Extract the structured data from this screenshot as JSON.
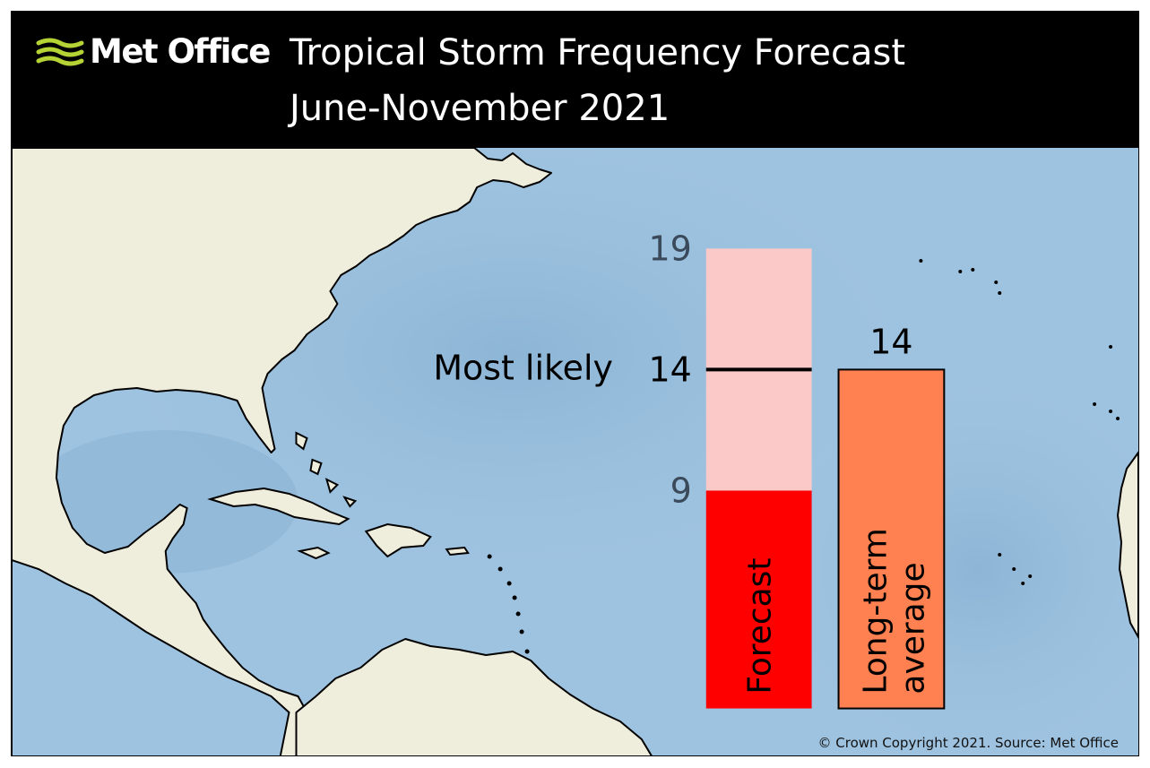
{
  "logo": {
    "text": "Met Office",
    "icon": "met-office-waves-icon",
    "icon_color": "#b5d335"
  },
  "title": {
    "line1": "Tropical Storm Frequency Forecast",
    "line2": "June-November 2021"
  },
  "colors": {
    "header_bg": "#000000",
    "ocean": "#9ec3e0",
    "land": "#efeedd",
    "forecast_range": "#fcc9c9",
    "forecast_bar": "#ff0000",
    "average_bar": "#ff8050",
    "most_likely_line": "#000000"
  },
  "chart_data": {
    "type": "bar",
    "title": "Tropical Storm Frequency Forecast",
    "subtitle": "June-November 2021",
    "categories": [
      "Forecast",
      "Long-term average"
    ],
    "forecast": {
      "label": "Forecast",
      "range_low": 9,
      "range_high": 19,
      "most_likely": 14,
      "most_likely_label": "Most likely"
    },
    "average": {
      "label_line1": "Long-term",
      "label_line2": "average",
      "value": 14
    },
    "tick_labels": [
      "19",
      "14",
      "9"
    ],
    "average_value_label": "14",
    "ylim": [
      0,
      19
    ]
  },
  "copyright": "© Crown Copyright 2021. Source: Met Office"
}
